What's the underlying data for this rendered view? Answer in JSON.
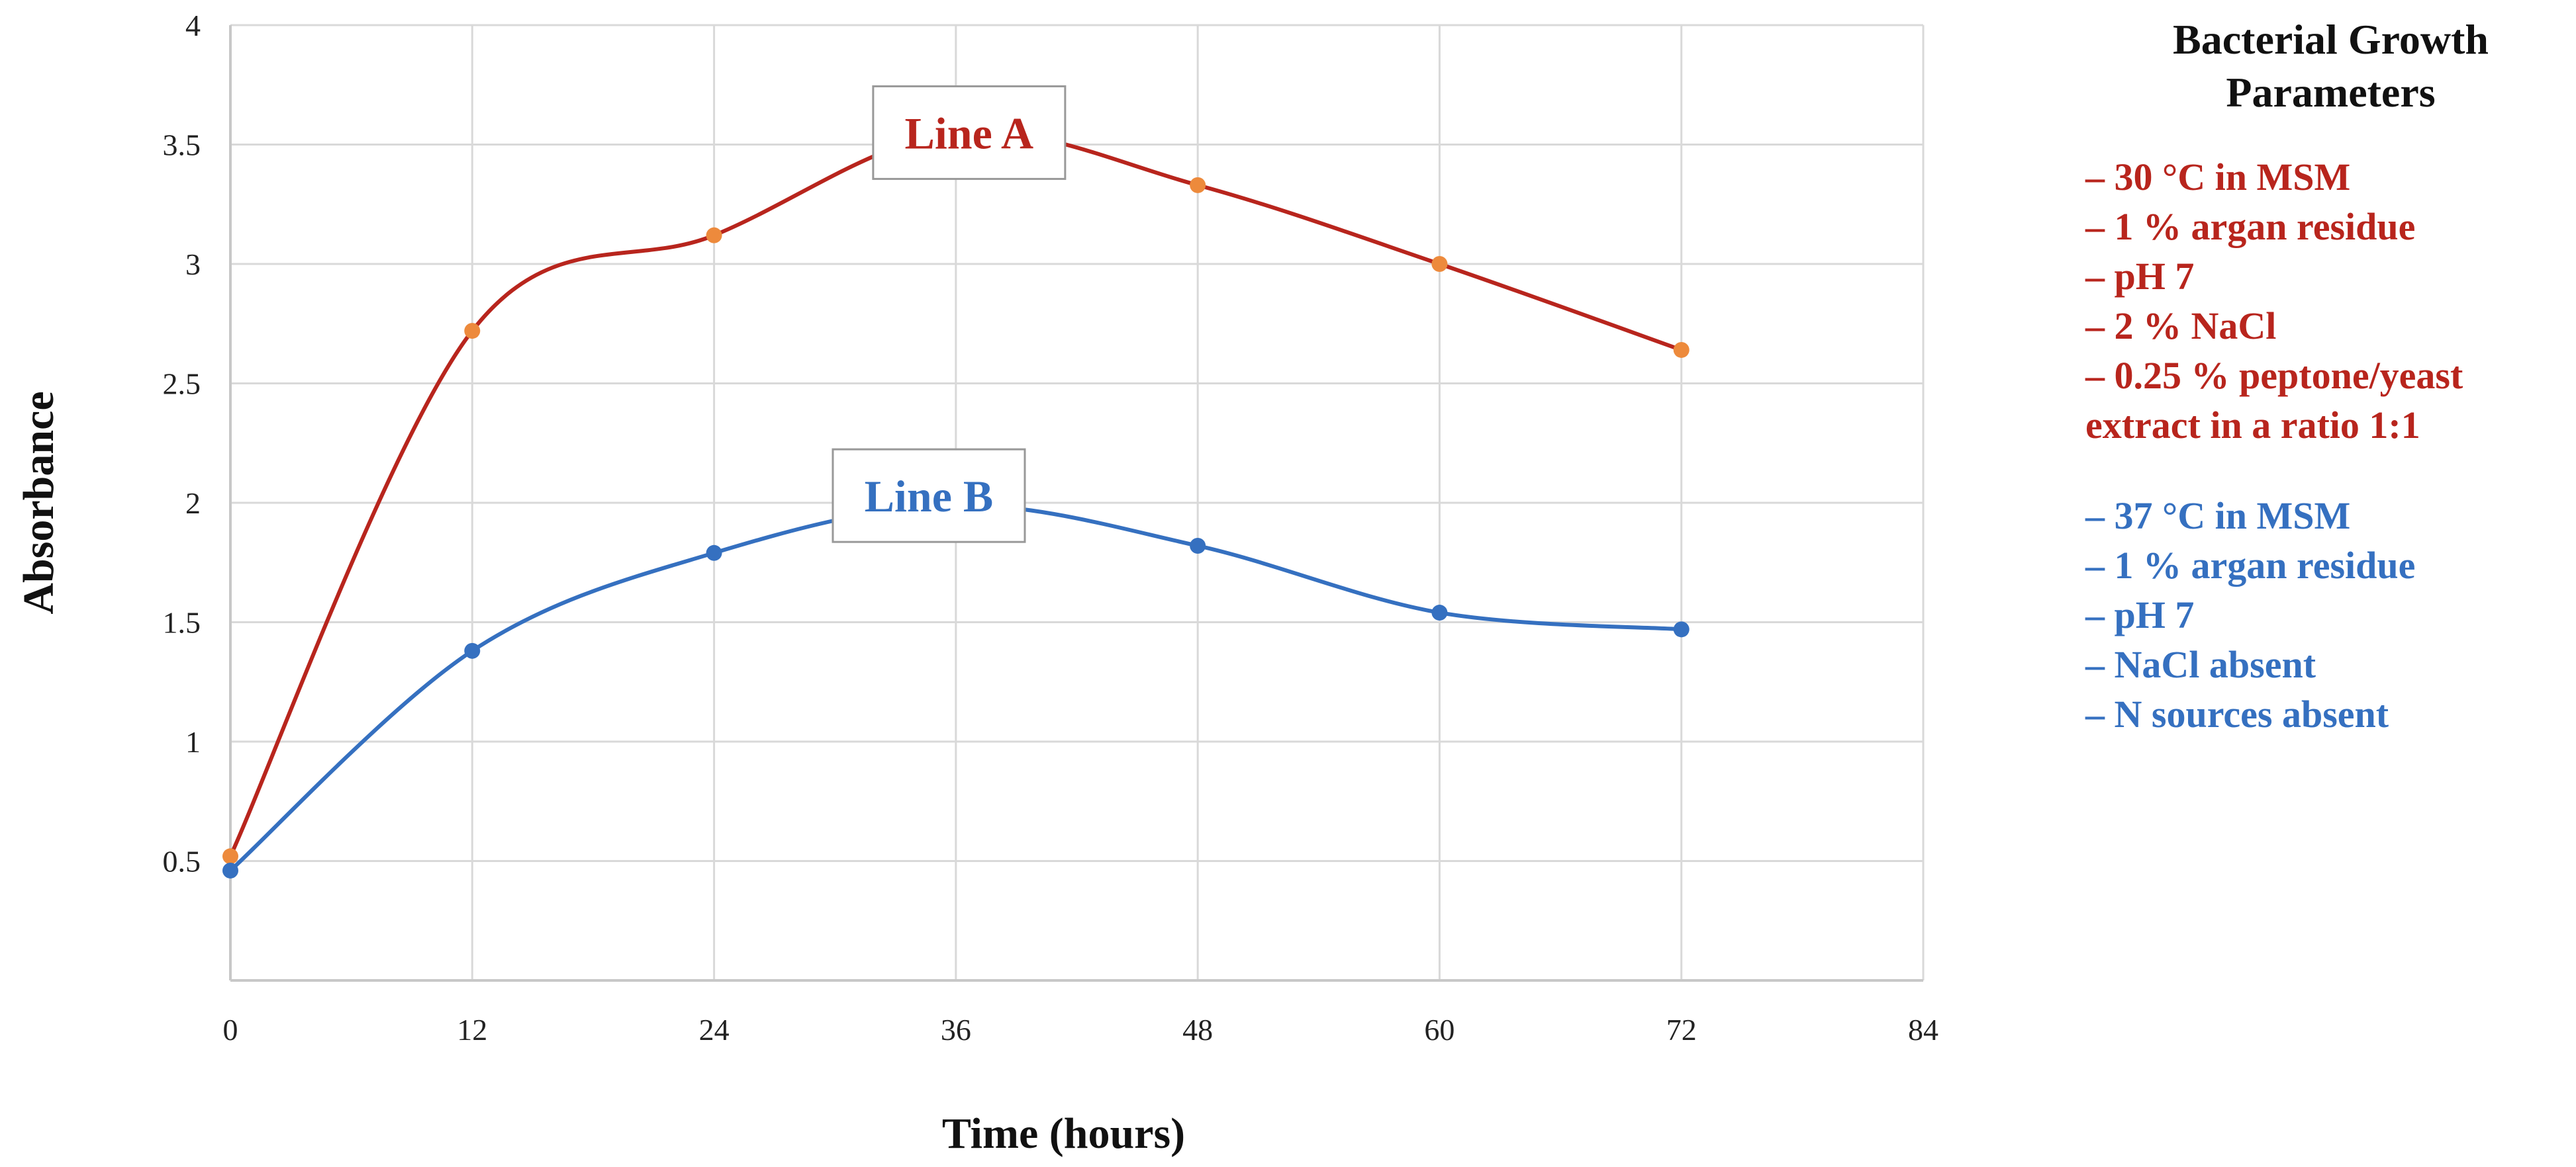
{
  "chart_data": {
    "type": "line",
    "x": [
      0,
      12,
      24,
      36,
      48,
      60,
      72
    ],
    "xlabel": "Time (hours)",
    "ylabel": "Absorbance",
    "xlim": [
      0,
      84
    ],
    "ylim": [
      0,
      4
    ],
    "x_ticks": [
      "0",
      "12",
      "24",
      "36",
      "48",
      "60",
      "72",
      "84"
    ],
    "y_ticks": [
      "0.5",
      "1",
      "1.5",
      "2",
      "2.5",
      "3",
      "3.5",
      "4"
    ],
    "grid": true,
    "smooth": true,
    "series": [
      {
        "name": "Line A",
        "values": [
          0.52,
          2.72,
          3.12,
          3.55,
          3.33,
          3.0,
          2.64
        ],
        "line_color": "#b8251d",
        "marker_color": "#ed8a3c",
        "label_anchor": {
          "x": 36,
          "y": 3.55
        }
      },
      {
        "name": "Line B",
        "values": [
          0.46,
          1.38,
          1.79,
          1.99,
          1.82,
          1.54,
          1.47
        ],
        "line_color": "#3570c0",
        "marker_color": "#3570c0",
        "label_anchor": {
          "x": 34,
          "y": 2.03
        }
      }
    ]
  },
  "parameters": {
    "title": [
      "Bacterial Growth",
      "Parameters"
    ],
    "line_a": {
      "color": "#b8251d",
      "items": [
        "– 30 °C in MSM",
        "– 1 % argan residue",
        "– pH 7",
        "– 2 % NaCl",
        "– 0.25 % peptone/yeast",
        "extract in a ratio 1:1"
      ]
    },
    "line_b": {
      "color": "#3570c0",
      "items": [
        "– 37 °C in MSM",
        "– 1 % argan residue",
        "– pH 7",
        "– NaCl absent",
        "– N sources absent"
      ]
    }
  }
}
